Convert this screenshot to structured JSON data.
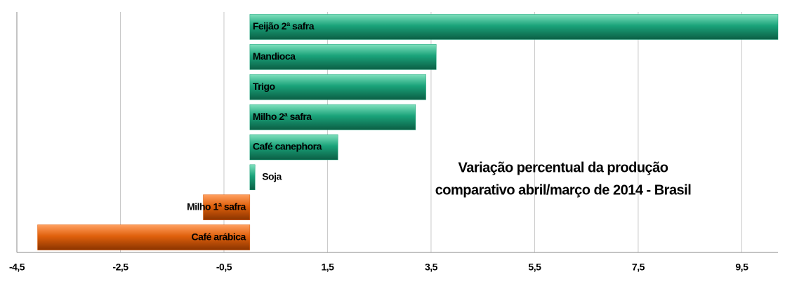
{
  "chart_data": {
    "type": "barh",
    "title": [
      "Variação percentual da produção",
      "comparativo abril/março de 2014 - Brasil"
    ],
    "categories": [
      "Feijão 2ª safra",
      "Mandioca",
      "Trigo",
      "Milho 2ª safra",
      "Café canephora",
      "Soja",
      "Milho 1ª safra",
      "Café arábica"
    ],
    "values": [
      10.2,
      3.6,
      3.4,
      3.2,
      1.7,
      0.1,
      -0.9,
      -4.1
    ],
    "positive_color": "#1aa37a",
    "negative_color": "#e0600c",
    "xlim": [
      -4.5,
      10.2
    ],
    "xticks": [
      {
        "value": -4.5,
        "label": "-4,5"
      },
      {
        "value": -2.5,
        "label": "-2,5"
      },
      {
        "value": -0.5,
        "label": "-0,5"
      },
      {
        "value": 1.5,
        "label": "1,5"
      },
      {
        "value": 3.5,
        "label": "3,5"
      },
      {
        "value": 5.5,
        "label": "5,5"
      },
      {
        "value": 7.5,
        "label": "7,5"
      },
      {
        "value": 9.5,
        "label": "9,5"
      }
    ],
    "grid": true
  }
}
